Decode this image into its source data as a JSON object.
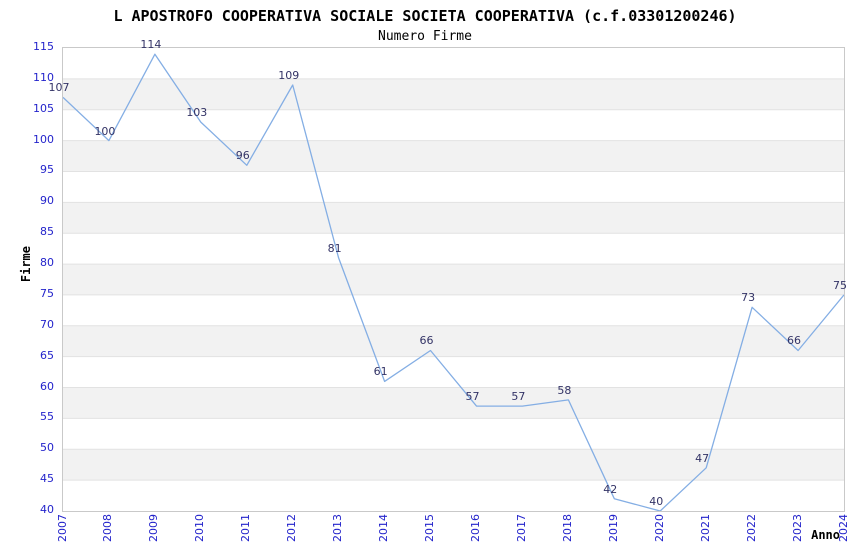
{
  "chart_data": {
    "type": "line",
    "title": "L APOSTROFO COOPERATIVA SOCIALE SOCIETA COOPERATIVA (c.f.03301200246)",
    "subtitle": "Numero Firme",
    "xlabel": "Anno",
    "ylabel": "Firme",
    "categories": [
      "2007",
      "2008",
      "2009",
      "2010",
      "2011",
      "2012",
      "2013",
      "2014",
      "2015",
      "2016",
      "2017",
      "2018",
      "2019",
      "2020",
      "2021",
      "2022",
      "2023",
      "2024"
    ],
    "values": [
      107,
      100,
      114,
      103,
      96,
      109,
      81,
      61,
      66,
      57,
      57,
      58,
      42,
      40,
      47,
      73,
      66,
      75
    ],
    "ylim": [
      40,
      115
    ],
    "ytick_step": 5,
    "grid": true,
    "legend": "none",
    "colors": {
      "line": "#84aee4",
      "data_label": "#333366",
      "tick_label": "#2323cb",
      "band_even": "#ffffff",
      "band_odd": "#f2f2f2",
      "gridline": "#e2e2e2",
      "plot_border": "#c9c9c9",
      "title": "#000000"
    }
  }
}
